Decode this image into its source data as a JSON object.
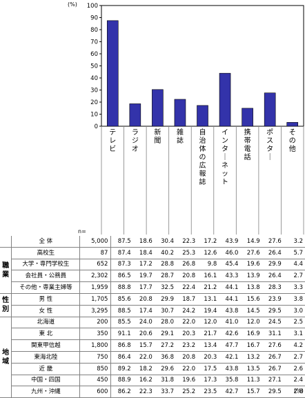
{
  "chart_data": {
    "type": "bar",
    "unit_label": "(%)",
    "ylim": [
      0,
      100
    ],
    "yticks": [
      0,
      10,
      20,
      30,
      40,
      50,
      60,
      70,
      80,
      90,
      100
    ],
    "categories": [
      "テレビ",
      "ラジオ",
      "新聞",
      "雑誌",
      "自治体の広報誌",
      "インターネット",
      "携帯電話",
      "ポスター",
      "その他"
    ],
    "values": [
      87.5,
      18.6,
      30.4,
      22.3,
      17.2,
      43.9,
      14.9,
      27.6,
      3.2
    ],
    "bar_color": "#3333aa"
  },
  "table": {
    "n_header": "n=",
    "unit_footer": "(%)",
    "total": {
      "name": "全 体",
      "n": "5,000",
      "values": [
        "87.5",
        "18.6",
        "30.4",
        "22.3",
        "17.2",
        "43.9",
        "14.9",
        "27.6",
        "3.2"
      ]
    },
    "groups": [
      {
        "label": "職業",
        "rows": [
          {
            "name": "高校生",
            "n": "87",
            "values": [
              "87.4",
              "18.4",
              "40.2",
              "25.3",
              "12.6",
              "46.0",
              "27.6",
              "26.4",
              "5.7"
            ]
          },
          {
            "name": "大学・専門学校生",
            "n": "652",
            "values": [
              "87.3",
              "17.2",
              "28.8",
              "26.8",
              "9.8",
              "45.4",
              "19.6",
              "29.9",
              "4.4"
            ]
          },
          {
            "name": "会社員・公務員",
            "n": "2,302",
            "values": [
              "86.5",
              "19.7",
              "28.7",
              "20.8",
              "16.1",
              "43.3",
              "13.9",
              "26.4",
              "2.7"
            ]
          },
          {
            "name": "その他・専業主婦等",
            "n": "1,959",
            "values": [
              "88.8",
              "17.7",
              "32.5",
              "22.4",
              "21.2",
              "44.1",
              "13.8",
              "28.3",
              "3.3"
            ]
          }
        ]
      },
      {
        "label": "性別",
        "rows": [
          {
            "name": "男 性",
            "n": "1,705",
            "values": [
              "85.6",
              "20.8",
              "29.9",
              "18.7",
              "13.1",
              "44.1",
              "15.6",
              "23.9",
              "3.8"
            ]
          },
          {
            "name": "女 性",
            "n": "3,295",
            "values": [
              "88.5",
              "17.4",
              "30.7",
              "24.2",
              "19.4",
              "43.8",
              "14.5",
              "29.5",
              "3.0"
            ]
          }
        ]
      },
      {
        "label": "地域",
        "rows": [
          {
            "name": "北海道",
            "n": "200",
            "values": [
              "85.5",
              "24.0",
              "28.0",
              "22.0",
              "12.0",
              "41.0",
              "12.0",
              "24.5",
              "2.5"
            ]
          },
          {
            "name": "東 北",
            "n": "350",
            "values": [
              "91.1",
              "20.6",
              "29.1",
              "20.3",
              "21.7",
              "42.6",
              "16.9",
              "31.1",
              "3.1"
            ]
          },
          {
            "name": "関東甲信越",
            "n": "1,800",
            "values": [
              "86.8",
              "15.7",
              "27.2",
              "23.2",
              "13.4",
              "47.7",
              "16.7",
              "27.6",
              "4.2"
            ]
          },
          {
            "name": "東海北陸",
            "n": "750",
            "values": [
              "86.4",
              "22.0",
              "36.8",
              "20.8",
              "20.3",
              "42.1",
              "13.2",
              "26.7",
              "2.7"
            ]
          },
          {
            "name": "近 畿",
            "n": "850",
            "values": [
              "89.2",
              "18.2",
              "29.6",
              "22.0",
              "17.5",
              "43.8",
              "13.5",
              "26.7",
              "2.6"
            ]
          },
          {
            "name": "中国・四国",
            "n": "450",
            "values": [
              "88.9",
              "16.2",
              "31.8",
              "19.6",
              "17.3",
              "35.8",
              "11.3",
              "27.1",
              "2.4"
            ]
          },
          {
            "name": "九州・沖縄",
            "n": "600",
            "values": [
              "86.2",
              "22.3",
              "33.7",
              "25.2",
              "23.5",
              "42.7",
              "15.7",
              "29.5",
              "2.8"
            ]
          }
        ]
      }
    ]
  }
}
